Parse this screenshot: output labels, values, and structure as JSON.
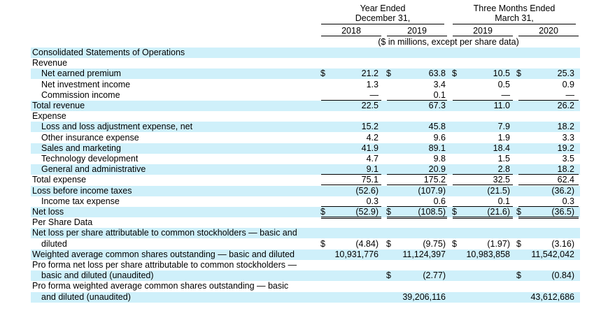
{
  "header": {
    "group1": "Year Ended\nDecember 31,",
    "group2": "Three Months Ended\nMarch 31,",
    "columns": [
      "2018",
      "2019",
      "2019",
      "2020"
    ],
    "units": "($ in millions, except per share data)"
  },
  "rows": [
    {
      "label": "Consolidated Statements of Operations",
      "indent": false,
      "band": true,
      "values": [
        "",
        "",
        "",
        ""
      ],
      "dollar": false
    },
    {
      "label": "Revenue",
      "indent": false,
      "band": false,
      "values": [
        "",
        "",
        "",
        ""
      ],
      "dollar": false
    },
    {
      "label": "Net earned premium",
      "indent": true,
      "band": true,
      "values": [
        "21.2",
        "63.8",
        "10.5",
        "25.3"
      ],
      "dollar": true
    },
    {
      "label": "Net investment income",
      "indent": true,
      "band": false,
      "values": [
        "1.3",
        "3.4",
        "0.5",
        "0.9"
      ],
      "dollar": false
    },
    {
      "label": "Commission income",
      "indent": true,
      "band": false,
      "values": [
        "—",
        "0.1",
        "—",
        "—"
      ],
      "dollar": false,
      "underline": true
    },
    {
      "label": "Total revenue",
      "indent": false,
      "band": true,
      "values": [
        "22.5",
        "67.3",
        "11.0",
        "26.2"
      ],
      "dollar": false
    },
    {
      "label": "Expense",
      "indent": false,
      "band": false,
      "values": [
        "",
        "",
        "",
        ""
      ],
      "dollar": false
    },
    {
      "label": "Loss and loss adjustment expense, net",
      "indent": true,
      "band": true,
      "values": [
        "15.2",
        "45.8",
        "7.9",
        "18.2"
      ],
      "dollar": false
    },
    {
      "label": "Other insurance expense",
      "indent": true,
      "band": false,
      "values": [
        "4.2",
        "9.6",
        "1.9",
        "3.3"
      ],
      "dollar": false
    },
    {
      "label": "Sales and marketing",
      "indent": true,
      "band": true,
      "values": [
        "41.9",
        "89.1",
        "18.4",
        "19.2"
      ],
      "dollar": false
    },
    {
      "label": "Technology development",
      "indent": true,
      "band": false,
      "values": [
        "4.7",
        "9.8",
        "1.5",
        "3.5"
      ],
      "dollar": false
    },
    {
      "label": "General and administrative",
      "indent": true,
      "band": true,
      "values": [
        "9.1",
        "20.9",
        "2.8",
        "18.2"
      ],
      "dollar": false,
      "underline": true
    },
    {
      "label": "Total expense",
      "indent": false,
      "band": false,
      "values": [
        "75.1",
        "175.2",
        "32.5",
        "62.4"
      ],
      "dollar": false,
      "underline": true
    },
    {
      "label": "Loss before income taxes",
      "indent": false,
      "band": true,
      "values": [
        "(52.6)",
        "(107.9)",
        "(21.5)",
        "(36.2)"
      ],
      "dollar": false
    },
    {
      "label": "Income tax expense",
      "indent": true,
      "band": false,
      "values": [
        "0.3",
        "0.6",
        "0.1",
        "0.3"
      ],
      "dollar": false,
      "underline": true
    },
    {
      "label": "Net loss",
      "indent": false,
      "band": true,
      "values": [
        "(52.9)",
        "(108.5)",
        "(21.6)",
        "(36.5)"
      ],
      "dollar": true,
      "double": true
    },
    {
      "label": "Per Share Data",
      "indent": false,
      "band": false,
      "values": [
        "",
        "",
        "",
        ""
      ],
      "dollar": false
    },
    {
      "label": "Net loss per share attributable to common stockholders — basic and",
      "indent": false,
      "band": true,
      "values": [
        "",
        "",
        "",
        ""
      ],
      "dollar": false
    },
    {
      "label": "diluted",
      "indent": true,
      "band": false,
      "values": [
        "(4.84)",
        "(9.75)",
        "(1.97)",
        "(3.16)"
      ],
      "dollar": true
    },
    {
      "label": "Weighted average common shares outstanding — basic and diluted",
      "indent": false,
      "band": true,
      "values": [
        "10,931,776",
        "11,124,397",
        "10,983,858",
        "11,542,042"
      ],
      "dollar": false
    },
    {
      "label": "Pro forma net loss per share attributable to common stockholders —",
      "indent": false,
      "band": false,
      "values": [
        "",
        "",
        "",
        ""
      ],
      "dollar": false
    },
    {
      "label": "basic and diluted (unaudited)",
      "indent": true,
      "band": true,
      "values": [
        "",
        "(2.77)",
        "",
        "(0.84)"
      ],
      "dollar": true,
      "dollarCols": [
        1,
        3
      ]
    },
    {
      "label": "Pro forma weighted average common shares outstanding — basic",
      "indent": false,
      "band": false,
      "values": [
        "",
        "",
        "",
        ""
      ],
      "dollar": false
    },
    {
      "label": "and diluted (unaudited)",
      "indent": true,
      "band": true,
      "values": [
        "",
        "39,206,116",
        "",
        "43,612,686"
      ],
      "dollar": false
    }
  ],
  "symbols": {
    "dollar": "$"
  }
}
